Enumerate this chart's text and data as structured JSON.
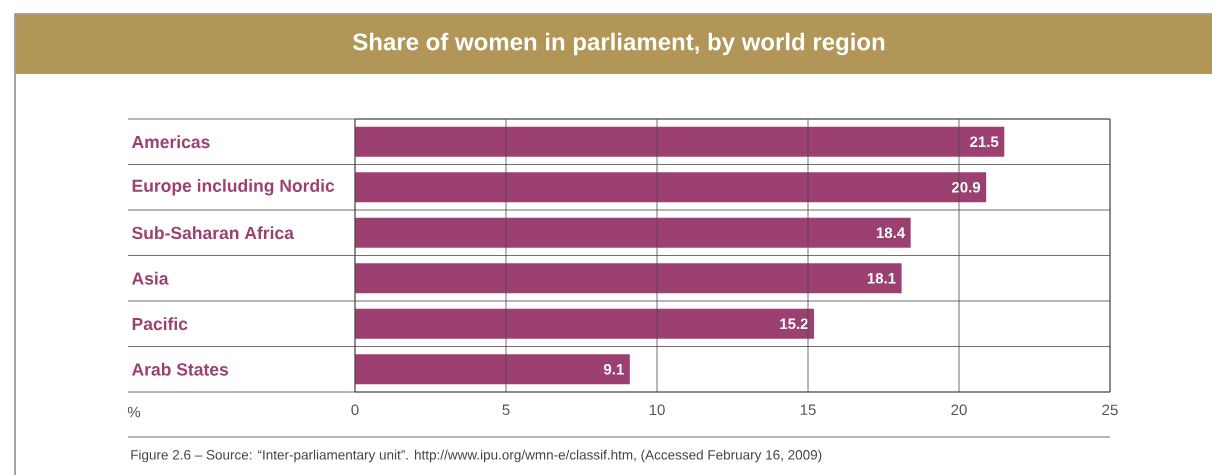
{
  "chart_data": {
    "type": "bar",
    "orientation": "horizontal",
    "title": "Share of women in parliament, by world region",
    "xlabel": "%",
    "categories": [
      "Americas",
      "Europe including Nordic",
      "Sub-Saharan Africa",
      "Asia",
      "Pacific",
      "Arab States"
    ],
    "values": [
      21.5,
      20.9,
      18.4,
      18.1,
      15.2,
      9.1
    ],
    "color": "#9c4072",
    "xlim": [
      0,
      25
    ],
    "xticks": [
      0,
      5,
      10,
      15,
      20,
      25
    ],
    "grid": true,
    "data_labels": true,
    "annotations": [
      "Figure 2.6 – Source: “Inter-parliamentary unit”. http://www.ipu.org/wmn-e/classif.htm, (Accessed February 16, 2009)"
    ]
  }
}
